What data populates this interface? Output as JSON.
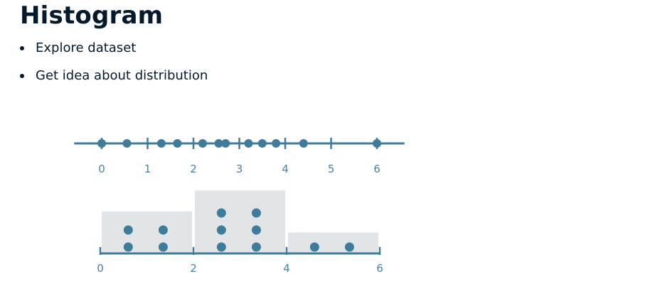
{
  "slide": {
    "title": "Histogram",
    "bullets": [
      "Explore dataset",
      "Get idea about distribution"
    ]
  },
  "colors": {
    "text": "#05192d",
    "axis": "#3f7c9c",
    "point": "#3f7c9c",
    "tick_label": "#4a82a0",
    "bar_fill": "#e1e5e8"
  },
  "chart_data": [
    {
      "type": "scatter",
      "xlim": [
        -0.6,
        6.6
      ],
      "x_ticks": [
        0,
        1,
        2,
        3,
        4,
        5,
        6
      ],
      "points": [
        0,
        0.55,
        1.3,
        1.65,
        2.2,
        2.55,
        2.7,
        3.2,
        3.5,
        3.8,
        4.4,
        6
      ]
    },
    {
      "type": "bar",
      "xlim": [
        -0.2,
        6.2
      ],
      "x_ticks": [
        0,
        2,
        4,
        6
      ],
      "bins": [
        {
          "start": 0,
          "end": 2,
          "count": 4
        },
        {
          "start": 2,
          "end": 4,
          "count": 6
        },
        {
          "start": 4,
          "end": 6,
          "count": 2
        }
      ],
      "dot_columns": [
        {
          "x": 0.6,
          "count": 2
        },
        {
          "x": 1.35,
          "count": 2
        },
        {
          "x": 2.6,
          "count": 3
        },
        {
          "x": 3.35,
          "count": 3
        },
        {
          "x": 4.6,
          "count": 1
        },
        {
          "x": 5.35,
          "count": 1
        }
      ]
    }
  ]
}
